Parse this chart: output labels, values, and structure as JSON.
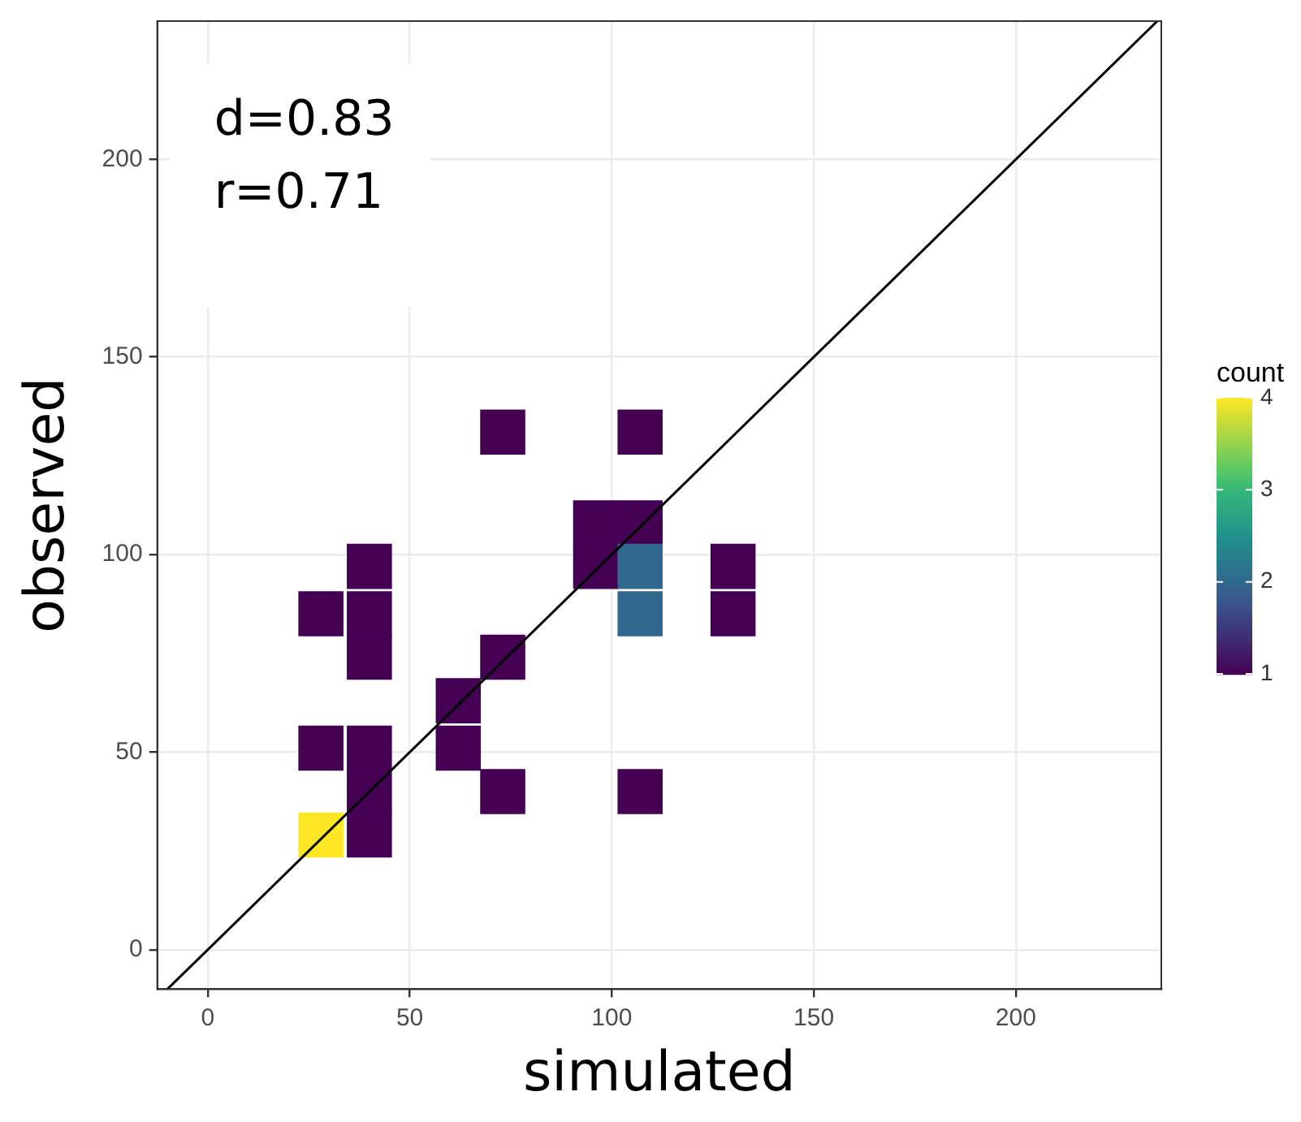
{
  "chart_data": {
    "type": "scatter",
    "xlabel": "simulated",
    "ylabel": "observed",
    "clabel": "count",
    "grid": true,
    "legend": false,
    "xlim": [
      -12.5,
      236
    ],
    "ylim": [
      -10,
      235
    ],
    "xticks": [
      0,
      50,
      100,
      150,
      200
    ],
    "yticks": [
      0,
      50,
      100,
      150,
      200
    ],
    "clim": [
      1,
      4
    ],
    "cticks": [
      1,
      2,
      3,
      4
    ],
    "annotations": [
      "d=0.83",
      "r=0.71"
    ],
    "series": [
      {
        "marker": "square",
        "colors": [
          "#fde725",
          "#440154",
          "#440154",
          "#440154",
          "#440154",
          "#440154",
          "#440154",
          "#440154",
          "#440154",
          "#440154",
          "#440154",
          "#440154",
          "#440154",
          "#440154",
          "#440154",
          "#440154",
          "#440154",
          "#31688e",
          "#31688e",
          "#440154",
          "#440154",
          "#440154",
          "#440154"
        ],
        "x": [
          28,
          40,
          40,
          28,
          40,
          73,
          107,
          62,
          62,
          73,
          40,
          28,
          40,
          40,
          96,
          96,
          107,
          107,
          107,
          130,
          130,
          73,
          107
        ],
        "values": [
          29,
          29,
          40,
          51,
          51,
          40,
          40,
          51,
          63,
          74,
          74,
          85,
          85,
          97,
          97,
          108,
          108,
          85,
          97,
          85,
          97,
          131,
          131
        ],
        "cvalues": [
          4,
          1,
          1,
          1,
          1,
          1,
          1,
          1,
          1,
          1,
          1,
          1,
          1,
          1,
          1,
          1,
          1,
          2,
          2,
          1,
          1,
          1,
          1
        ]
      },
      {
        "type": "line",
        "marker": "none",
        "x": [
          -10,
          235
        ],
        "values": [
          -10,
          235
        ],
        "color": "#000000"
      }
    ]
  }
}
